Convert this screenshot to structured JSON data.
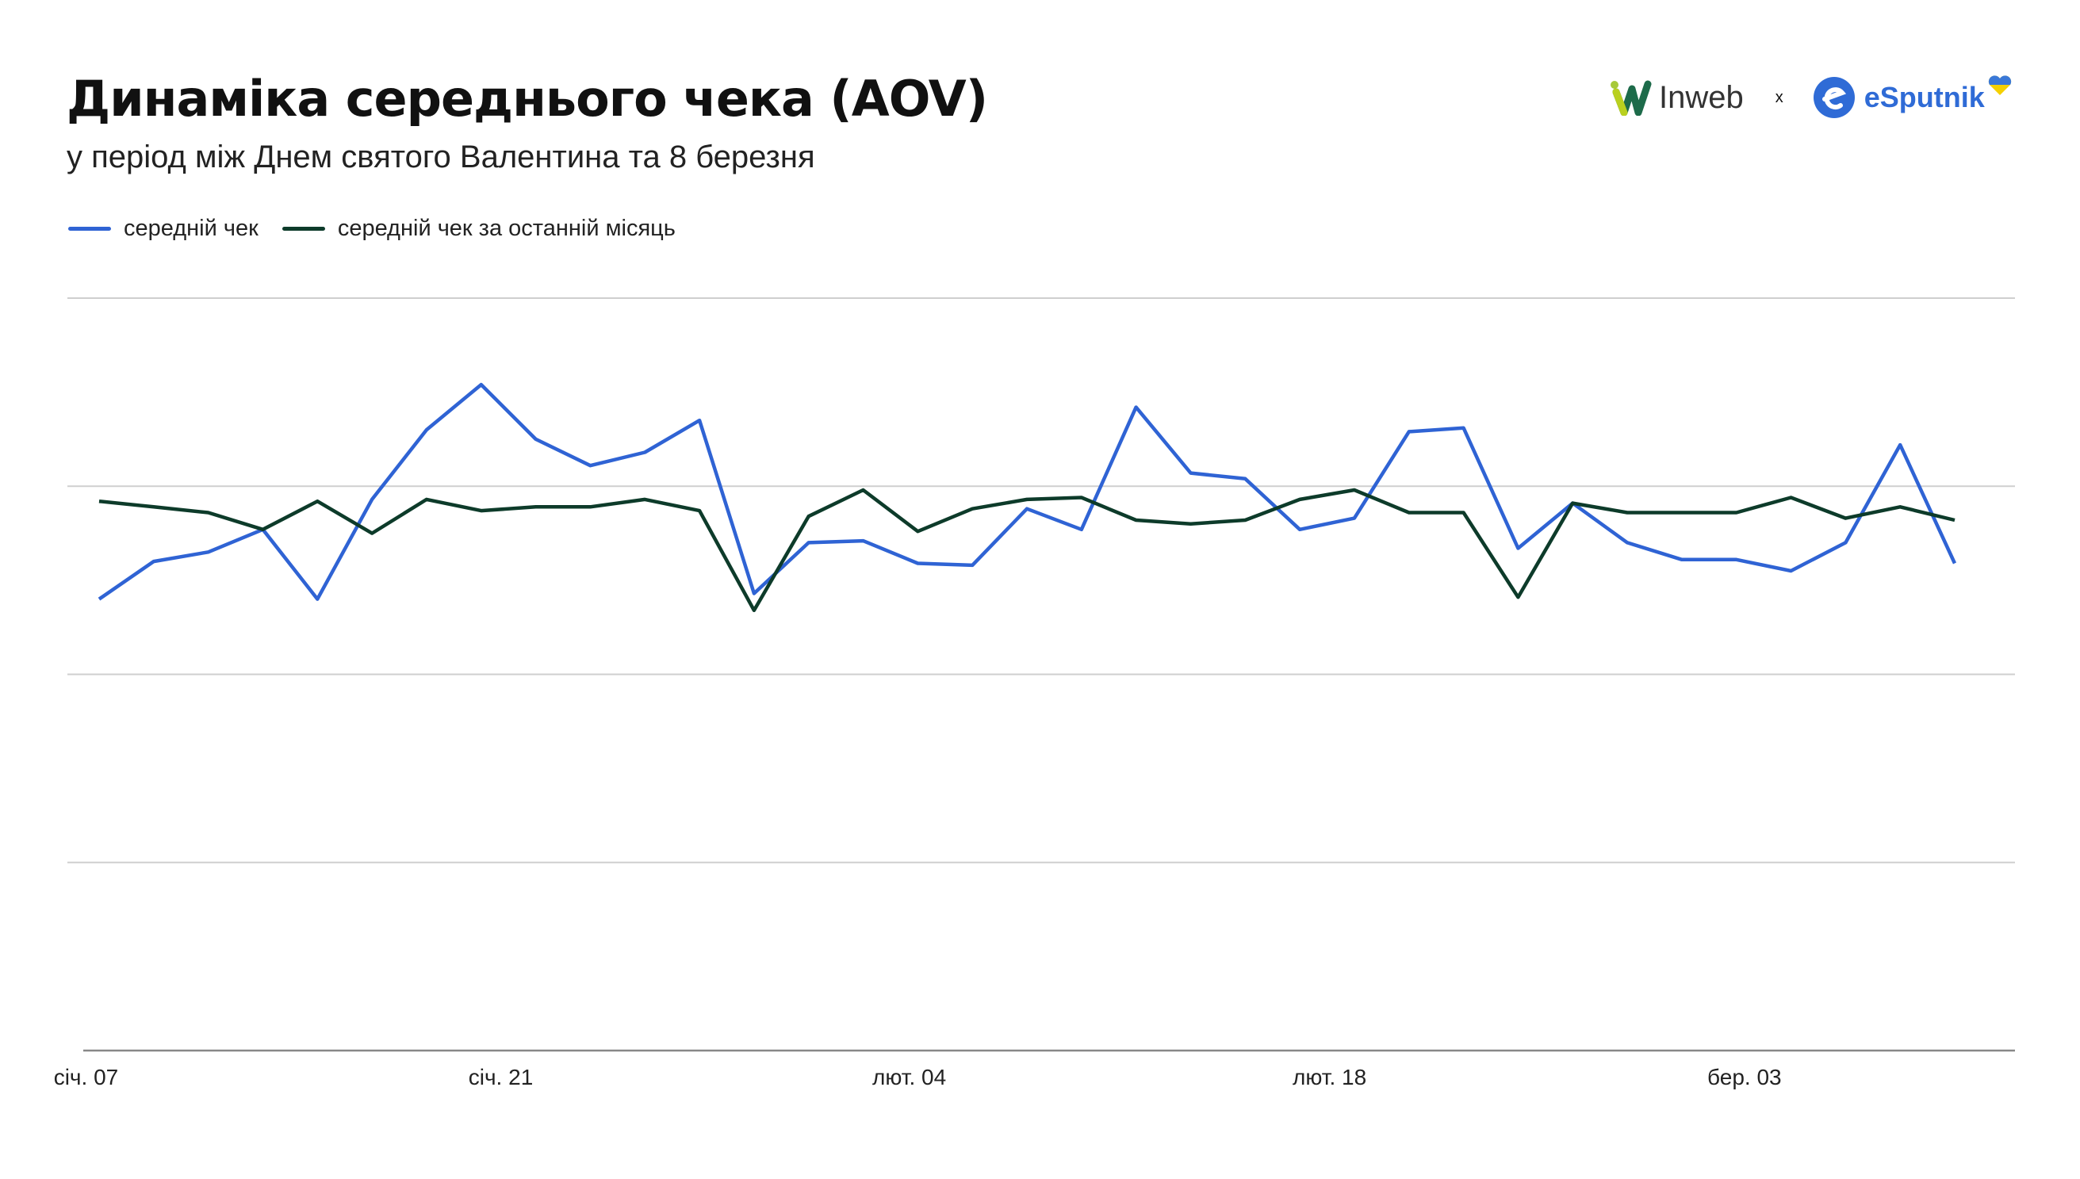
{
  "title": "Динаміка середнього чека (AOV)",
  "subtitle": "у період між Днем святого Валентина та 8 березня",
  "logos": {
    "left": "Inweb",
    "separator": "x",
    "right": "eSputnik"
  },
  "chart_data": {
    "type": "line",
    "title": "Динаміка середнього чека (AOV)",
    "subtitle": "у період між Днем святого Валентина та 8 березня",
    "xlabel": "",
    "ylabel": "",
    "ylim": [
      0,
      4
    ],
    "y_tick_labels_shown": false,
    "grid": true,
    "legend_position": "top-left",
    "x_tick_labels": [
      "січ. 07",
      "січ. 21",
      "лют. 04",
      "лют. 18",
      "бер. 03"
    ],
    "x_tick_index": [
      -0.6,
      7,
      14.4,
      22.1,
      29.7
    ],
    "x": [
      0,
      1,
      2,
      3,
      4,
      5,
      6,
      7,
      8,
      9,
      10,
      11,
      12,
      13,
      14,
      15,
      16,
      17,
      18,
      19,
      20,
      21,
      22,
      23,
      24,
      25,
      26,
      27,
      28,
      29,
      30,
      31,
      32,
      33,
      34
    ],
    "series": [
      {
        "name": "середній чек",
        "color": "#2f63d4",
        "values": [
          2.4,
          2.6,
          2.65,
          2.77,
          2.4,
          2.93,
          3.3,
          3.54,
          3.25,
          3.11,
          3.18,
          3.35,
          2.43,
          2.7,
          2.71,
          2.59,
          2.58,
          2.88,
          2.77,
          3.42,
          3.07,
          3.04,
          2.77,
          2.83,
          3.29,
          3.31,
          2.67,
          2.91,
          2.7,
          2.61,
          2.61,
          2.55,
          2.7,
          3.22,
          2.59
        ]
      },
      {
        "name": "середній чек за останній місяць",
        "color": "#0d3b2a",
        "values": [
          2.92,
          2.89,
          2.86,
          2.77,
          2.92,
          2.75,
          2.93,
          2.87,
          2.89,
          2.89,
          2.93,
          2.87,
          2.34,
          2.84,
          2.98,
          2.76,
          2.88,
          2.93,
          2.94,
          2.82,
          2.8,
          2.82,
          2.93,
          2.98,
          2.86,
          2.86,
          2.41,
          2.91,
          2.86,
          2.86,
          2.86,
          2.94,
          2.83,
          2.89,
          2.82
        ]
      }
    ]
  }
}
